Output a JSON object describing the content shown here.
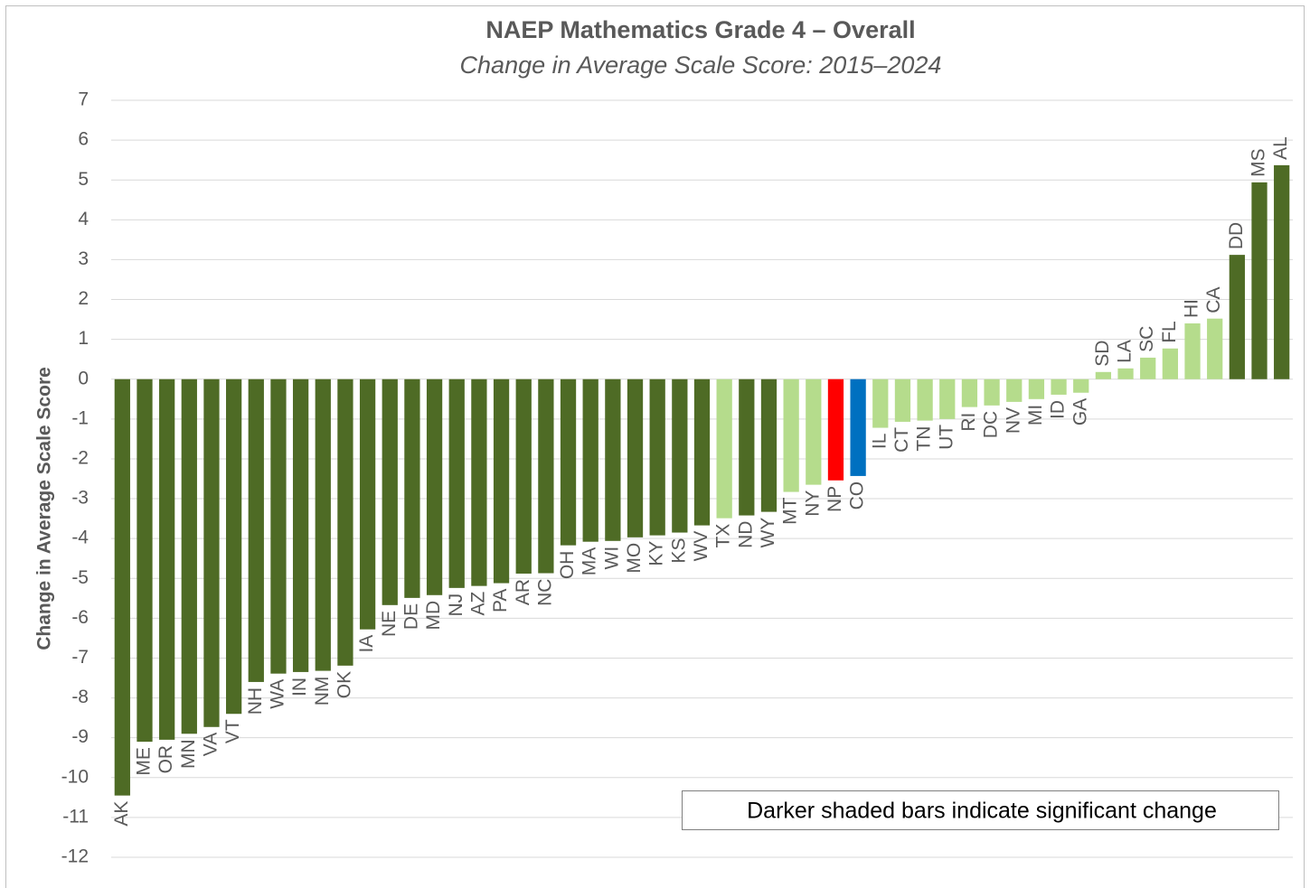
{
  "chart_data": {
    "type": "bar",
    "title": "NAEP Mathematics Grade 4 – Overall",
    "subtitle": "Change in Average Scale Score: 2015–2024",
    "y_label": "Change in Average Scale Score",
    "annotation": "Darker shaded bars indicate significant change",
    "categories": [
      "AK",
      "ME",
      "OR",
      "MN",
      "VA",
      "VT",
      "NH",
      "WA",
      "IN",
      "NM",
      "OK",
      "IA",
      "NE",
      "DE",
      "MD",
      "NJ",
      "AZ",
      "PA",
      "AR",
      "NC",
      "OH",
      "MA",
      "WI",
      "MO",
      "KY",
      "KS",
      "WV",
      "TX",
      "ND",
      "WY",
      "MT",
      "NY",
      "NP",
      "CO",
      "IL",
      "CT",
      "TN",
      "UT",
      "RI",
      "DC",
      "NV",
      "MI",
      "ID",
      "GA",
      "SD",
      "LA",
      "SC",
      "FL",
      "HI",
      "CA",
      "DD",
      "MS",
      "AL"
    ],
    "values": [
      -10.45,
      -9.1,
      -9.05,
      -8.9,
      -8.73,
      -8.4,
      -7.6,
      -7.39,
      -7.35,
      -7.32,
      -7.19,
      -6.28,
      -5.67,
      -5.49,
      -5.42,
      -5.24,
      -5.19,
      -5.12,
      -4.88,
      -4.87,
      -4.17,
      -4.08,
      -4.06,
      -3.97,
      -3.92,
      -3.85,
      -3.67,
      -3.49,
      -3.42,
      -3.33,
      -2.83,
      -2.65,
      -2.54,
      -2.43,
      -1.22,
      -1.07,
      -1.04,
      -1.0,
      -0.7,
      -0.66,
      -0.57,
      -0.5,
      -0.39,
      -0.34,
      0.18,
      0.27,
      0.54,
      0.77,
      1.4,
      1.52,
      3.12,
      4.94,
      5.37
    ],
    "colors": [
      "#4e6b25",
      "#4e6b25",
      "#4e6b25",
      "#4e6b25",
      "#4e6b25",
      "#4e6b25",
      "#4e6b25",
      "#4e6b25",
      "#4e6b25",
      "#4e6b25",
      "#4e6b25",
      "#4e6b25",
      "#4e6b25",
      "#4e6b25",
      "#4e6b25",
      "#4e6b25",
      "#4e6b25",
      "#4e6b25",
      "#4e6b25",
      "#4e6b25",
      "#4e6b25",
      "#4e6b25",
      "#4e6b25",
      "#4e6b25",
      "#4e6b25",
      "#4e6b25",
      "#4e6b25",
      "#b5dc8c",
      "#4e6b25",
      "#4e6b25",
      "#b5dc8c",
      "#b5dc8c",
      "#ff0000",
      "#0070c0",
      "#b5dc8c",
      "#b5dc8c",
      "#b5dc8c",
      "#b5dc8c",
      "#b5dc8c",
      "#b5dc8c",
      "#b5dc8c",
      "#b5dc8c",
      "#b5dc8c",
      "#b5dc8c",
      "#b5dc8c",
      "#b5dc8c",
      "#b5dc8c",
      "#b5dc8c",
      "#b5dc8c",
      "#b5dc8c",
      "#4e6b25",
      "#4e6b25",
      "#4e6b25"
    ],
    "ylim": [
      -12,
      7
    ],
    "yticks": [
      -12,
      -11,
      -10,
      -9,
      -8,
      -7,
      -6,
      -5,
      -4,
      -3,
      -2,
      -1,
      0,
      1,
      2,
      3,
      4,
      5,
      6,
      7
    ],
    "grid": true
  }
}
